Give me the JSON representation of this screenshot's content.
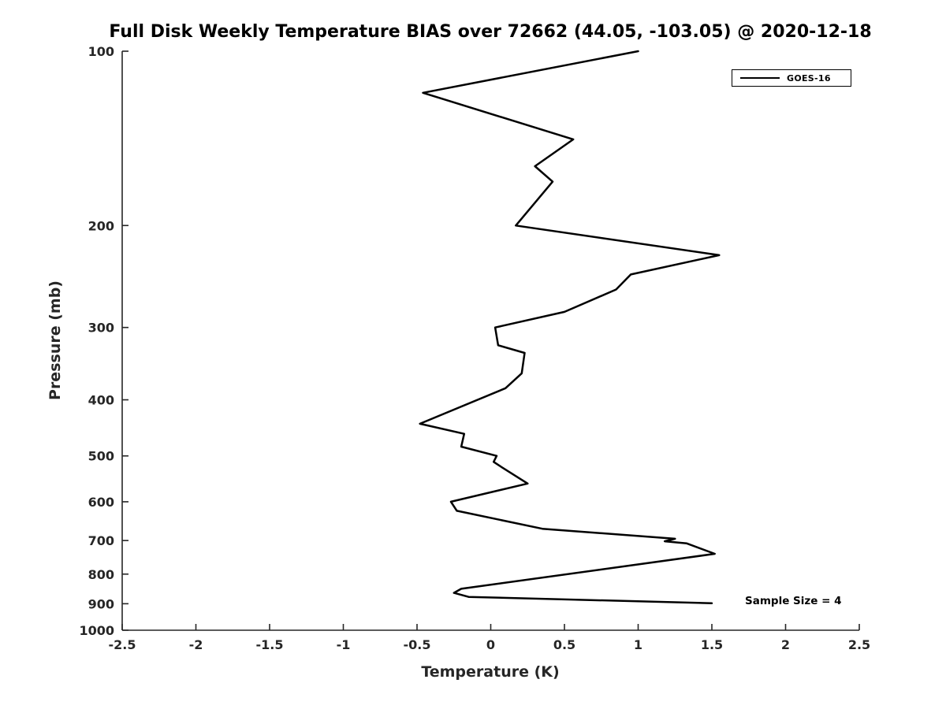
{
  "chart_data": {
    "type": "line",
    "title": "Full Disk Weekly Temperature BIAS over 72662 (44.05, -103.05) @ 2020-12-18",
    "xlabel": "Temperature (K)",
    "ylabel": "Pressure (mb)",
    "xlim": [
      -2.5,
      2.5
    ],
    "ylim": [
      100,
      1000
    ],
    "y_scale": "log10",
    "y_axis_inverted": true,
    "grid": false,
    "x_ticks": [
      -2.5,
      -2,
      -1.5,
      -1,
      -0.5,
      0,
      0.5,
      1,
      1.5,
      2,
      2.5
    ],
    "x_tick_labels": [
      "-2.5",
      "-2",
      "-1.5",
      "-1",
      "-0.5",
      "0",
      "0.5",
      "1",
      "1.5",
      "2",
      "2.5"
    ],
    "y_ticks": [
      100,
      200,
      300,
      400,
      500,
      600,
      700,
      800,
      900,
      1000
    ],
    "y_tick_labels": [
      "100",
      "200",
      "300",
      "400",
      "500",
      "600",
      "700",
      "800",
      "900",
      "1000"
    ],
    "legend": {
      "position": "top-right",
      "entries": [
        {
          "label": "GOES-16",
          "color": "#000000",
          "line_width": 2.5
        }
      ]
    },
    "annotation": "Sample Size = 4",
    "series": [
      {
        "name": "GOES-16",
        "color": "#000000",
        "line_width": 2.5,
        "points_pressure_mb_vs_bias_k": [
          [
            100,
            1.0
          ],
          [
            118,
            -0.46
          ],
          [
            142,
            0.56
          ],
          [
            158,
            0.3
          ],
          [
            168,
            0.42
          ],
          [
            200,
            0.17
          ],
          [
            225,
            1.55
          ],
          [
            243,
            0.95
          ],
          [
            258,
            0.85
          ],
          [
            282,
            0.5
          ],
          [
            300,
            0.03
          ],
          [
            322,
            0.05
          ],
          [
            332,
            0.23
          ],
          [
            360,
            0.21
          ],
          [
            382,
            0.1
          ],
          [
            440,
            -0.48
          ],
          [
            458,
            -0.18
          ],
          [
            482,
            -0.2
          ],
          [
            500,
            0.04
          ],
          [
            512,
            0.02
          ],
          [
            522,
            0.07
          ],
          [
            558,
            0.25
          ],
          [
            600,
            -0.27
          ],
          [
            622,
            -0.23
          ],
          [
            668,
            0.35
          ],
          [
            695,
            1.25
          ],
          [
            702,
            1.18
          ],
          [
            708,
            1.33
          ],
          [
            738,
            1.52
          ],
          [
            848,
            -0.2
          ],
          [
            862,
            -0.25
          ],
          [
            876,
            -0.15
          ],
          [
            898,
            1.5
          ]
        ]
      }
    ]
  }
}
